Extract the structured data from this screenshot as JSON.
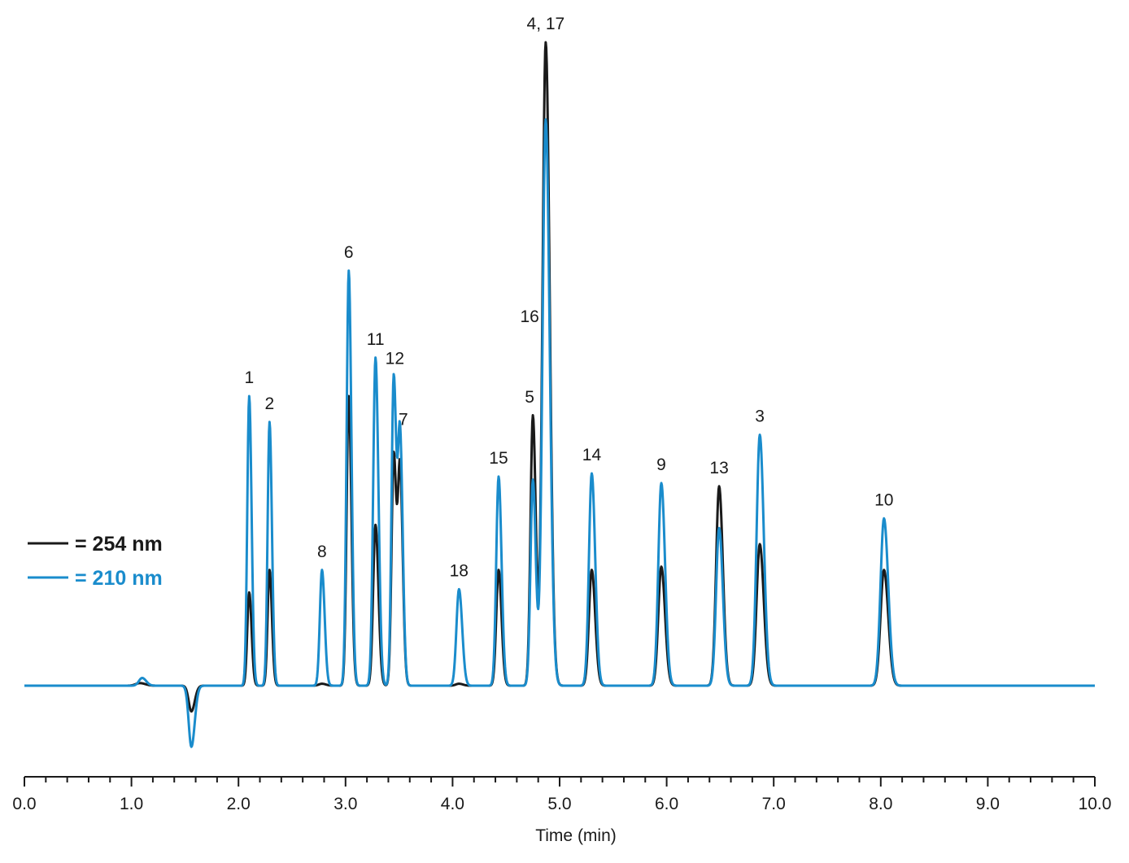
{
  "chart_data": {
    "type": "line",
    "title": "",
    "xlabel": "Time (min)",
    "ylabel": "",
    "xlim": [
      0,
      10
    ],
    "ylim": [
      -0.2,
      1.0
    ],
    "grid": false,
    "legend_position": "left",
    "x_ticks": [
      "0.0",
      "1.0",
      "2.0",
      "3.0",
      "4.0",
      "5.0",
      "6.0",
      "7.0",
      "8.0",
      "9.0",
      "10.0"
    ],
    "series": [
      {
        "name": "= 254 nm",
        "color": "#1a1a1a",
        "baseline": 0.0,
        "peaks": [
          {
            "t": 1.08,
            "h": 0.004,
            "w": 0.04
          },
          {
            "t": 1.56,
            "h": -0.04,
            "w": 0.025
          },
          {
            "t": 2.1,
            "h": 0.145,
            "w": 0.018
          },
          {
            "t": 2.29,
            "h": 0.18,
            "w": 0.018
          },
          {
            "t": 2.78,
            "h": 0.003,
            "w": 0.03
          },
          {
            "t": 3.03,
            "h": 0.45,
            "w": 0.02
          },
          {
            "t": 3.28,
            "h": 0.25,
            "w": 0.022
          },
          {
            "t": 3.45,
            "h": 0.36,
            "w": 0.02
          },
          {
            "t": 3.51,
            "h": 0.33,
            "w": 0.02
          },
          {
            "t": 4.06,
            "h": 0.003,
            "w": 0.03
          },
          {
            "t": 4.43,
            "h": 0.18,
            "w": 0.022
          },
          {
            "t": 4.75,
            "h": 0.42,
            "w": 0.022
          },
          {
            "t": 4.87,
            "h": 1.0,
            "w": 0.03
          },
          {
            "t": 5.3,
            "h": 0.18,
            "w": 0.026
          },
          {
            "t": 5.95,
            "h": 0.185,
            "w": 0.028
          },
          {
            "t": 6.49,
            "h": 0.31,
            "w": 0.028
          },
          {
            "t": 6.87,
            "h": 0.22,
            "w": 0.03
          },
          {
            "t": 8.03,
            "h": 0.18,
            "w": 0.032
          }
        ]
      },
      {
        "name": "= 210 nm",
        "color": "#1a8ccc",
        "baseline": 0.0,
        "peaks": [
          {
            "t": 1.1,
            "h": 0.012,
            "w": 0.03
          },
          {
            "t": 1.56,
            "h": -0.095,
            "w": 0.025
          },
          {
            "t": 2.1,
            "h": 0.45,
            "w": 0.018
          },
          {
            "t": 2.29,
            "h": 0.41,
            "w": 0.018
          },
          {
            "t": 2.78,
            "h": 0.18,
            "w": 0.02
          },
          {
            "t": 3.03,
            "h": 0.645,
            "w": 0.02
          },
          {
            "t": 3.28,
            "h": 0.51,
            "w": 0.022
          },
          {
            "t": 3.45,
            "h": 0.48,
            "w": 0.02
          },
          {
            "t": 3.51,
            "h": 0.38,
            "w": 0.02
          },
          {
            "t": 4.06,
            "h": 0.15,
            "w": 0.024
          },
          {
            "t": 4.43,
            "h": 0.325,
            "w": 0.022
          },
          {
            "t": 4.75,
            "h": 0.32,
            "w": 0.022
          },
          {
            "t": 4.87,
            "h": 0.88,
            "w": 0.03
          },
          {
            "t": 5.3,
            "h": 0.33,
            "w": 0.026
          },
          {
            "t": 5.95,
            "h": 0.315,
            "w": 0.028
          },
          {
            "t": 6.49,
            "h": 0.245,
            "w": 0.028
          },
          {
            "t": 6.87,
            "h": 0.39,
            "w": 0.03
          },
          {
            "t": 8.03,
            "h": 0.26,
            "w": 0.032
          }
        ]
      }
    ],
    "annotations": [
      {
        "text": "1",
        "t": 2.1,
        "y": 0.47
      },
      {
        "text": "2",
        "t": 2.29,
        "y": 0.43
      },
      {
        "text": "8",
        "t": 2.78,
        "y": 0.2
      },
      {
        "text": "6",
        "t": 3.03,
        "y": 0.665
      },
      {
        "text": "11",
        "t": 3.28,
        "y": 0.53
      },
      {
        "text": "12",
        "t": 3.46,
        "y": 0.5
      },
      {
        "text": "7",
        "t": 3.54,
        "y": 0.405
      },
      {
        "text": "18",
        "t": 4.06,
        "y": 0.17
      },
      {
        "text": "15",
        "t": 4.43,
        "y": 0.345
      },
      {
        "text": "5",
        "t": 4.72,
        "y": 0.44
      },
      {
        "text": "16",
        "t": 4.72,
        "y": 0.565
      },
      {
        "text": "4, 17",
        "t": 4.87,
        "y": 1.02
      },
      {
        "text": "14",
        "t": 5.3,
        "y": 0.35
      },
      {
        "text": "9",
        "t": 5.95,
        "y": 0.335
      },
      {
        "text": "13",
        "t": 6.49,
        "y": 0.33
      },
      {
        "text": "3",
        "t": 6.87,
        "y": 0.41
      },
      {
        "text": "10",
        "t": 8.03,
        "y": 0.28
      }
    ]
  }
}
